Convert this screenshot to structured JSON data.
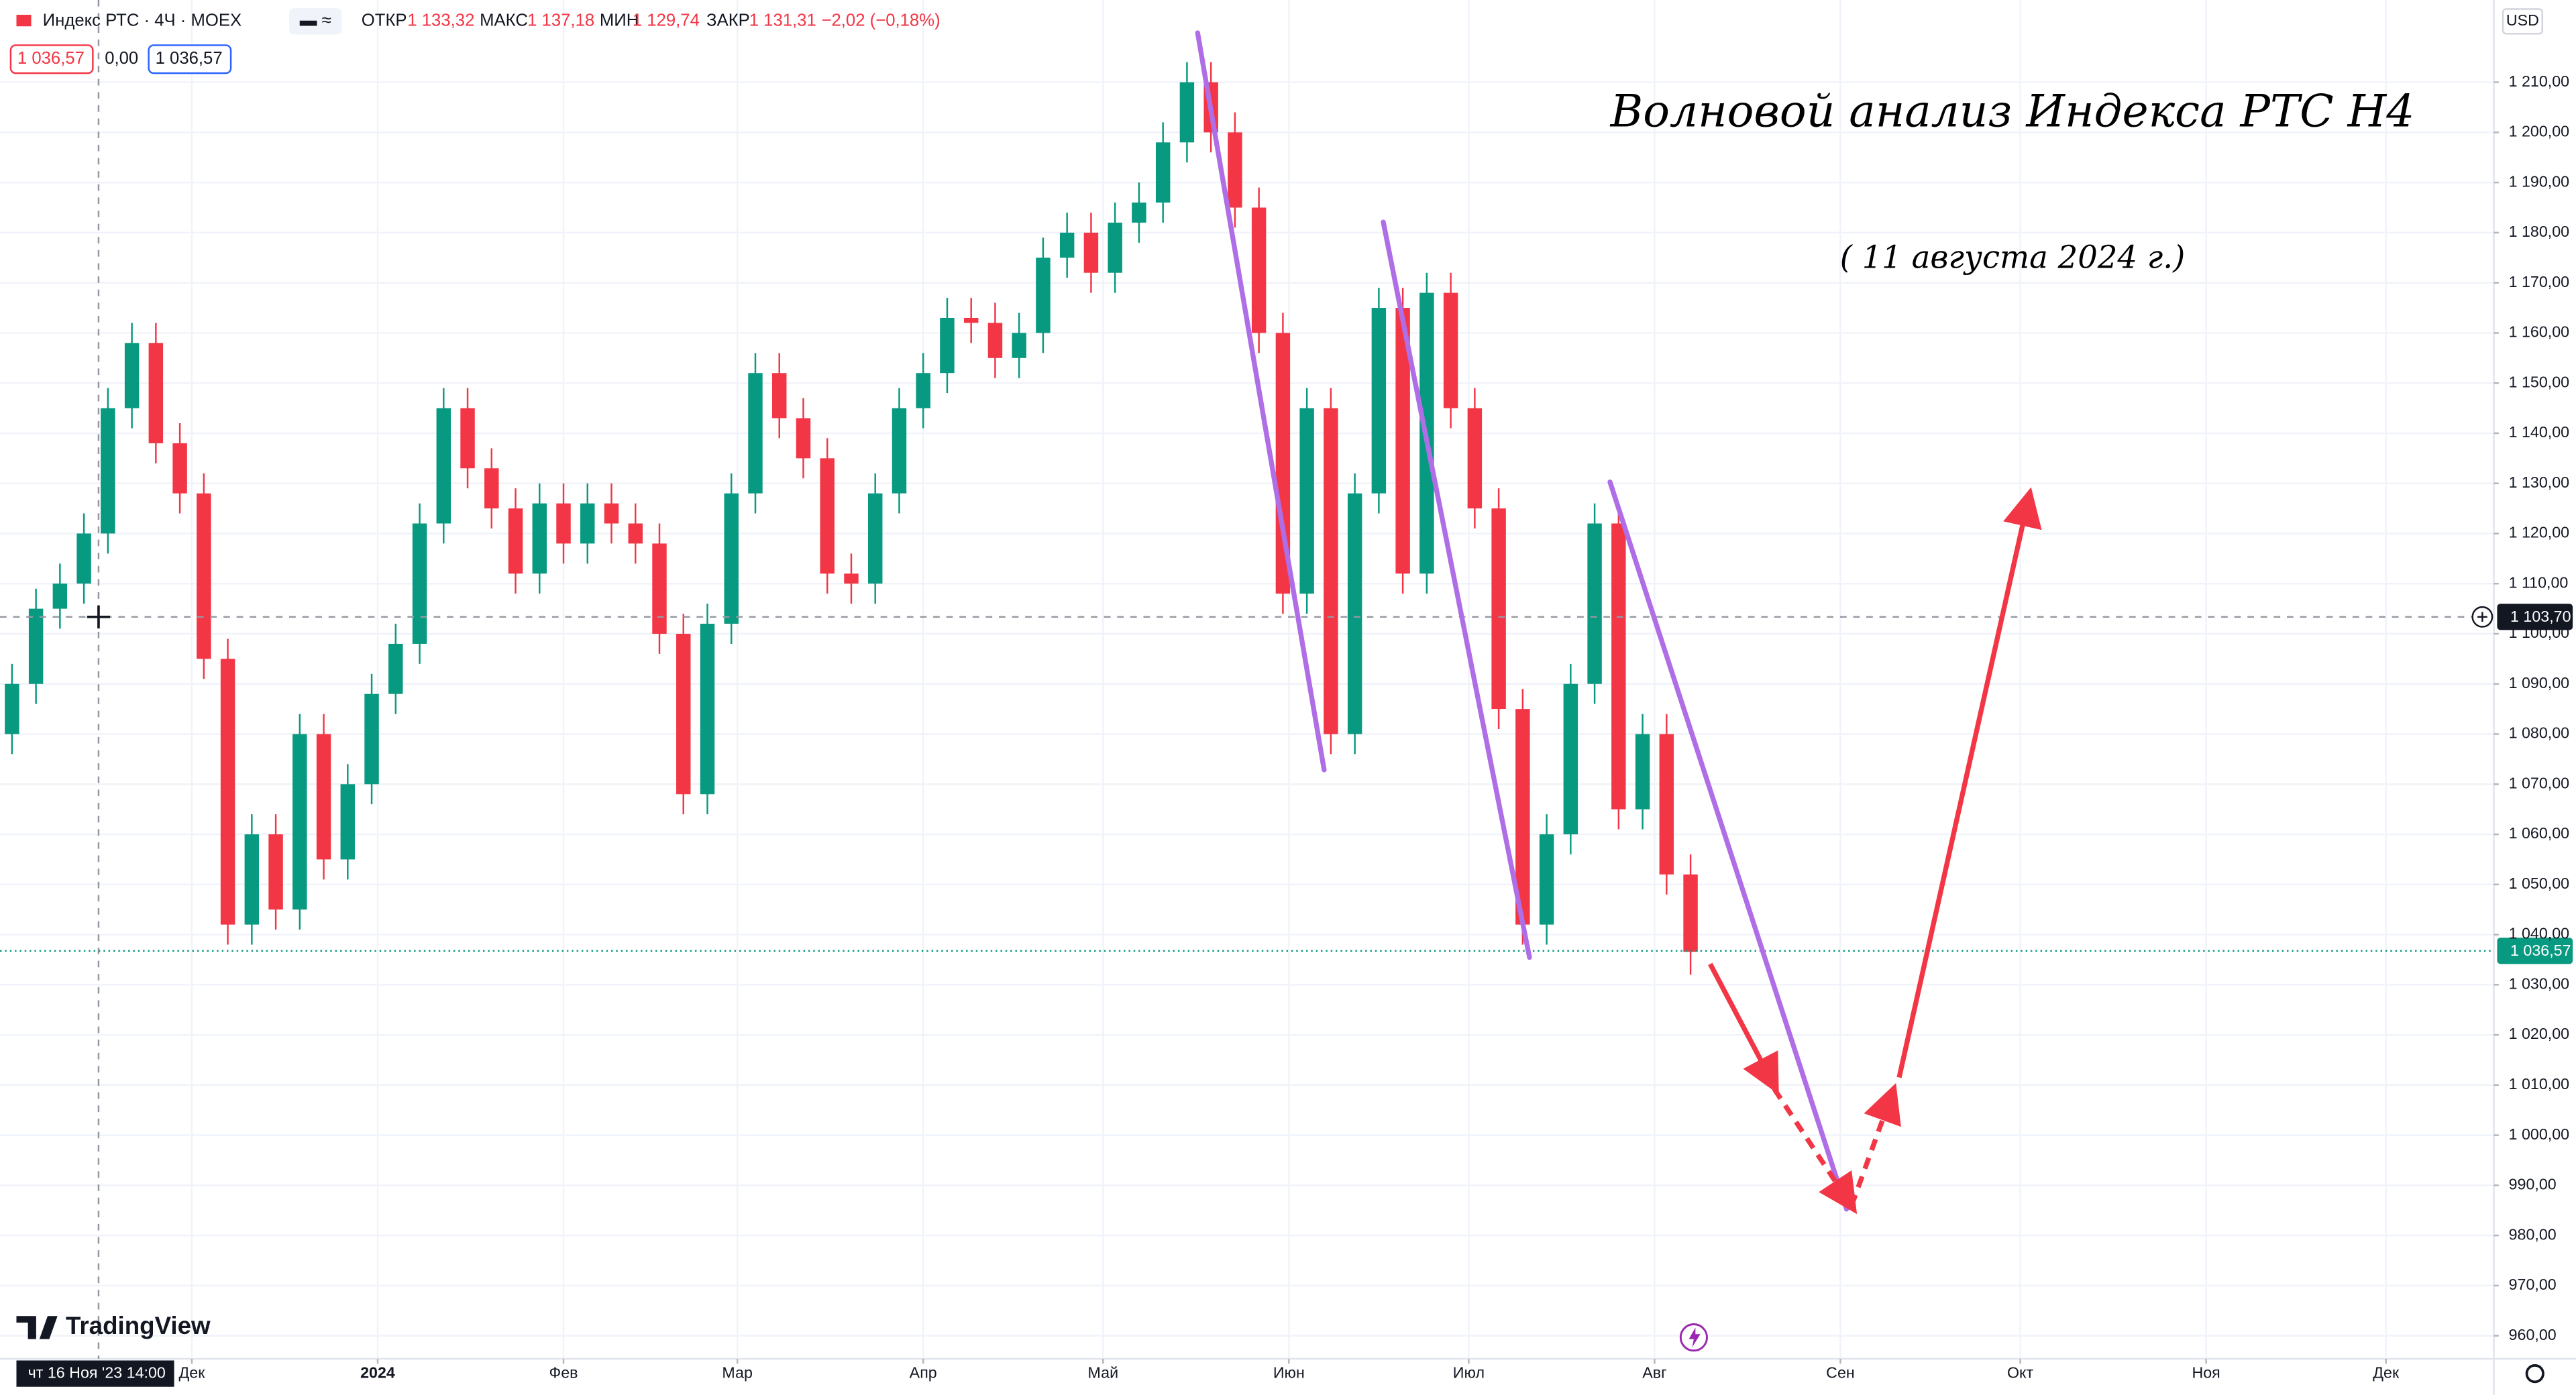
{
  "header": {
    "symbol": "Индекс РТС · 4Ч · MOEX",
    "open_label": "ОТКР",
    "open": "1 133,32",
    "high_label": "МАКС",
    "high": "1 137,18",
    "low_label": "МИН",
    "low": "1 129,74",
    "close_label": "ЗАКР",
    "close": "1 131,31",
    "change": "−2,02 (−0,18%)",
    "sell": "1 036,57",
    "spread": "0,00",
    "buy": "1 036,57",
    "currency": "USD"
  },
  "crosshair": {
    "date": "чт 16 Ноя '23  14:00",
    "price": "1 103,70"
  },
  "last_price": "1 036,57",
  "annotations": {
    "title": "Волновой анализ Индекса РТС Н4",
    "date": "( 11 августа 2024 г.)"
  },
  "brand": "TradingView",
  "chart_data": {
    "type": "candlestick",
    "up_color": "#089981",
    "down_color": "#f23645",
    "grid": true,
    "x": [
      0,
      4,
      8,
      12,
      16,
      20,
      24,
      28,
      32,
      36,
      40,
      44,
      48,
      52,
      56,
      60,
      64,
      68,
      72,
      76,
      80,
      84,
      88,
      92,
      96,
      100,
      104,
      108,
      112,
      116,
      120,
      124,
      128,
      132,
      136,
      140,
      144,
      148,
      152,
      156,
      160,
      164,
      168,
      172,
      176,
      180,
      184,
      188,
      192,
      196,
      200,
      204,
      208,
      212,
      216,
      220,
      224,
      228,
      232,
      236,
      240,
      244,
      248,
      252,
      256,
      260,
      264,
      268,
      272,
      276,
      280
    ],
    "open": [
      1080,
      1090,
      1105,
      1110,
      1120,
      1145,
      1158,
      1138,
      1128,
      1095,
      1042,
      1060,
      1045,
      1080,
      1055,
      1070,
      1088,
      1098,
      1122,
      1145,
      1133,
      1125,
      1112,
      1126,
      1118,
      1126,
      1122,
      1118,
      1100,
      1068,
      1102,
      1128,
      1152,
      1143,
      1135,
      1112,
      1110,
      1128,
      1145,
      1152,
      1163,
      1162,
      1155,
      1160,
      1175,
      1180,
      1172,
      1182,
      1186,
      1198,
      1210,
      1200,
      1185,
      1160,
      1108,
      1145,
      1080,
      1128,
      1165,
      1112,
      1168,
      1145,
      1125,
      1085,
      1042,
      1060,
      1090,
      1122,
      1065,
      1080,
      1052
    ],
    "high": [
      1094,
      1109,
      1114,
      1124,
      1149,
      1162,
      1162,
      1142,
      1132,
      1099,
      1064,
      1064,
      1084,
      1084,
      1074,
      1092,
      1102,
      1126,
      1149,
      1149,
      1137,
      1129,
      1130,
      1130,
      1130,
      1130,
      1126,
      1122,
      1104,
      1106,
      1132,
      1156,
      1156,
      1147,
      1139,
      1116,
      1132,
      1149,
      1156,
      1167,
      1167,
      1166,
      1164,
      1179,
      1184,
      1184,
      1186,
      1190,
      1202,
      1214,
      1214,
      1204,
      1189,
      1164,
      1149,
      1149,
      1132,
      1169,
      1169,
      1172,
      1172,
      1149,
      1129,
      1089,
      1064,
      1094,
      1126,
      1126,
      1084,
      1084,
      1056
    ],
    "low": [
      1076,
      1086,
      1101,
      1106,
      1116,
      1141,
      1134,
      1124,
      1091,
      1038,
      1038,
      1041,
      1041,
      1051,
      1051,
      1066,
      1084,
      1094,
      1118,
      1129,
      1121,
      1108,
      1108,
      1114,
      1114,
      1118,
      1114,
      1096,
      1064,
      1064,
      1098,
      1124,
      1139,
      1131,
      1108,
      1106,
      1106,
      1124,
      1141,
      1148,
      1158,
      1151,
      1151,
      1156,
      1171,
      1168,
      1168,
      1178,
      1182,
      1194,
      1196,
      1181,
      1156,
      1104,
      1104,
      1076,
      1076,
      1124,
      1108,
      1108,
      1141,
      1121,
      1081,
      1038,
      1038,
      1056,
      1086,
      1061,
      1061,
      1048,
      1032
    ],
    "close": [
      1090,
      1105,
      1110,
      1120,
      1145,
      1158,
      1138,
      1128,
      1095,
      1042,
      1060,
      1045,
      1080,
      1055,
      1070,
      1088,
      1098,
      1122,
      1145,
      1133,
      1125,
      1112,
      1126,
      1118,
      1126,
      1122,
      1118,
      1100,
      1068,
      1102,
      1128,
      1152,
      1143,
      1135,
      1112,
      1110,
      1128,
      1145,
      1152,
      1163,
      1162,
      1155,
      1160,
      1175,
      1180,
      1172,
      1182,
      1186,
      1198,
      1210,
      1200,
      1185,
      1160,
      1108,
      1145,
      1080,
      1128,
      1165,
      1112,
      1168,
      1145,
      1125,
      1085,
      1042,
      1060,
      1090,
      1122,
      1065,
      1080,
      1052,
      1036.57
    ],
    "xlim": [
      -2,
      414
    ],
    "xticks": [
      {
        "value": 30,
        "label": "Дек"
      },
      {
        "value": 61,
        "label": "2024"
      },
      {
        "value": 92,
        "label": "Фев"
      },
      {
        "value": 121,
        "label": "Мар"
      },
      {
        "value": 152,
        "label": "Апр"
      },
      {
        "value": 182,
        "label": "Май"
      },
      {
        "value": 213,
        "label": "Июн"
      },
      {
        "value": 243,
        "label": "Июл"
      },
      {
        "value": 274,
        "label": "Авг"
      },
      {
        "value": 305,
        "label": "Сен"
      },
      {
        "value": 335,
        "label": "Окт"
      },
      {
        "value": 366,
        "label": "Ноя"
      },
      {
        "value": 396,
        "label": "Дек"
      }
    ],
    "ylim": [
      955.4,
      1226.4
    ],
    "yticks": [
      {
        "value": 960,
        "label": "960,00"
      },
      {
        "value": 970,
        "label": "970,00"
      },
      {
        "value": 980,
        "label": "980,00"
      },
      {
        "value": 990,
        "label": "990,00"
      },
      {
        "value": 1000,
        "label": "1 000,00"
      },
      {
        "value": 1010,
        "label": "1 010,00"
      },
      {
        "value": 1020,
        "label": "1 020,00"
      },
      {
        "value": 1030,
        "label": "1 030,00"
      },
      {
        "value": 1040,
        "label": "1 040,00"
      },
      {
        "value": 1050,
        "label": "1 050,00"
      },
      {
        "value": 1060,
        "label": "1 060,00"
      },
      {
        "value": 1070,
        "label": "1 070,00"
      },
      {
        "value": 1080,
        "label": "1 080,00"
      },
      {
        "value": 1090,
        "label": "1 090,00"
      },
      {
        "value": 1100,
        "label": "1 100,00"
      },
      {
        "value": 1110,
        "label": "1 110,00"
      },
      {
        "value": 1120,
        "label": "1 120,00"
      },
      {
        "value": 1130,
        "label": "1 130,00"
      },
      {
        "value": 1140,
        "label": "1 140,00"
      },
      {
        "value": 1150,
        "label": "1 150,00"
      },
      {
        "value": 1160,
        "label": "1 160,00"
      },
      {
        "value": 1170,
        "label": "1 170,00"
      },
      {
        "value": 1180,
        "label": "1 180,00"
      },
      {
        "value": 1190,
        "label": "1 190,00"
      },
      {
        "value": 1200,
        "label": "1 200,00"
      },
      {
        "value": 1210,
        "label": "1 210,00"
      }
    ]
  }
}
